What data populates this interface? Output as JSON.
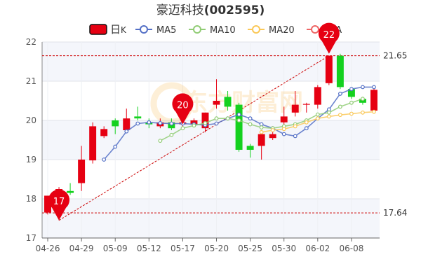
{
  "chart_data": {
    "type": "candlestick",
    "title": "豪迈科技(002595)",
    "title_name": "豪迈科技",
    "title_code": "(002595)",
    "legend": [
      {
        "name": "日K",
        "label_main": "日",
        "label_sub": "K",
        "kind": "candle",
        "color": "#e60012",
        "stroke": "#111111"
      },
      {
        "name": "MA5",
        "kind": "line",
        "color": "#5470c6"
      },
      {
        "name": "MA10",
        "kind": "line",
        "color": "#91cc75"
      },
      {
        "name": "MA20",
        "kind": "line",
        "color": "#fac858"
      },
      {
        "name": "MA",
        "kind": "line",
        "color": "#ee6666"
      }
    ],
    "legend_placement": "top-center",
    "ylim": [
      17,
      22
    ],
    "yticks": [
      "17",
      "18",
      "19",
      "20",
      "21",
      "22"
    ],
    "x_ticks": [
      "04-26",
      "04-29",
      "05-09",
      "05-12",
      "05-17",
      "05-20",
      "05-25",
      "05-30",
      "06-02",
      "06-08"
    ],
    "grid": true,
    "colors": {
      "up": "#e60012",
      "down": "#14d11f",
      "pin": "#e60012",
      "refline": "#cc0000"
    },
    "candles": [
      {
        "o": 17.65,
        "h": 18.05,
        "l": 17.6,
        "c": 18.08
      },
      {
        "o": 18.05,
        "h": 18.3,
        "l": 17.45,
        "c": 18.25
      },
      {
        "o": 18.2,
        "h": 18.4,
        "l": 18.1,
        "c": 18.15
      },
      {
        "o": 18.4,
        "h": 19.35,
        "l": 18.2,
        "c": 19.0
      },
      {
        "o": 18.98,
        "h": 19.95,
        "l": 18.9,
        "c": 19.85
      },
      {
        "o": 19.6,
        "h": 19.85,
        "l": 19.55,
        "c": 19.78
      },
      {
        "o": 20.0,
        "h": 20.05,
        "l": 19.65,
        "c": 19.85
      },
      {
        "o": 19.75,
        "h": 20.3,
        "l": 19.7,
        "c": 20.05
      },
      {
        "o": 20.1,
        "h": 20.35,
        "l": 20.0,
        "c": 20.05
      },
      {
        "o": 19.95,
        "h": 20.05,
        "l": 19.8,
        "c": 19.9
      },
      {
        "o": 19.85,
        "h": 20.05,
        "l": 19.8,
        "c": 19.95
      },
      {
        "o": 19.95,
        "h": 20.05,
        "l": 19.75,
        "c": 19.8
      },
      {
        "o": 19.9,
        "h": 20.0,
        "l": 19.75,
        "c": 19.95
      },
      {
        "o": 19.9,
        "h": 20.05,
        "l": 19.85,
        "c": 20.0
      },
      {
        "o": 19.8,
        "h": 20.2,
        "l": 19.7,
        "c": 20.2
      },
      {
        "o": 20.4,
        "h": 21.05,
        "l": 20.3,
        "c": 20.5
      },
      {
        "o": 20.6,
        "h": 20.75,
        "l": 20.25,
        "c": 20.35
      },
      {
        "o": 20.4,
        "h": 20.45,
        "l": 19.2,
        "c": 19.25
      },
      {
        "o": 19.35,
        "h": 19.4,
        "l": 19.05,
        "c": 19.25
      },
      {
        "o": 19.35,
        "h": 19.7,
        "l": 19.0,
        "c": 19.65
      },
      {
        "o": 19.55,
        "h": 19.85,
        "l": 19.5,
        "c": 19.65
      },
      {
        "o": 19.95,
        "h": 20.35,
        "l": 19.9,
        "c": 20.1
      },
      {
        "o": 20.2,
        "h": 20.75,
        "l": 20.1,
        "c": 20.4
      },
      {
        "o": 20.4,
        "h": 20.45,
        "l": 20.2,
        "c": 20.42
      },
      {
        "o": 20.4,
        "h": 20.9,
        "l": 20.3,
        "c": 20.85
      },
      {
        "o": 20.95,
        "h": 21.65,
        "l": 20.9,
        "c": 21.65
      },
      {
        "o": 21.65,
        "h": 21.7,
        "l": 20.8,
        "c": 20.85
      },
      {
        "o": 20.8,
        "h": 20.85,
        "l": 20.55,
        "c": 20.6
      },
      {
        "o": 20.55,
        "h": 20.6,
        "l": 20.4,
        "c": 20.45
      },
      {
        "o": 20.25,
        "h": 20.85,
        "l": 20.2,
        "c": 20.78
      }
    ],
    "series": [
      {
        "name": "MA5",
        "color": "#5470c6",
        "start": 5,
        "values": [
          19.0,
          19.33,
          19.72,
          19.92,
          19.95,
          19.93,
          19.92,
          19.92,
          19.9,
          19.88,
          19.92,
          20.05,
          20.15,
          20.05,
          19.9,
          19.8,
          19.65,
          19.6,
          19.8,
          20.05,
          20.28,
          20.68,
          20.8,
          20.85,
          20.85
        ]
      },
      {
        "name": "MA10",
        "color": "#91cc75",
        "start": 10,
        "values": [
          19.48,
          19.63,
          19.8,
          19.87,
          19.93,
          20.05,
          20.05,
          20.0,
          19.9,
          19.82,
          19.8,
          19.85,
          19.9,
          20.0,
          20.15,
          20.2,
          20.35,
          20.45,
          20.55
        ]
      },
      {
        "name": "MA20",
        "color": "#fac858",
        "start": 19,
        "values": [
          19.7,
          19.75,
          19.78,
          19.85,
          19.95,
          20.05,
          20.1,
          20.14,
          20.17,
          20.2,
          20.22
        ]
      }
    ],
    "ref_lines": [
      {
        "value": 21.65,
        "label": "21.65"
      },
      {
        "value": 17.64,
        "label": "17.64"
      }
    ],
    "trend_line": {
      "from": {
        "index": 1,
        "value": 17.45
      },
      "to": {
        "index": 25,
        "value": 21.65
      }
    },
    "markers": [
      {
        "index": 1,
        "value": 17.45,
        "label": "17"
      },
      {
        "index": 12,
        "value": 19.9,
        "label": "20"
      },
      {
        "index": 25,
        "value": 21.7,
        "label": "22"
      }
    ],
    "watermark": "东方财富网"
  }
}
